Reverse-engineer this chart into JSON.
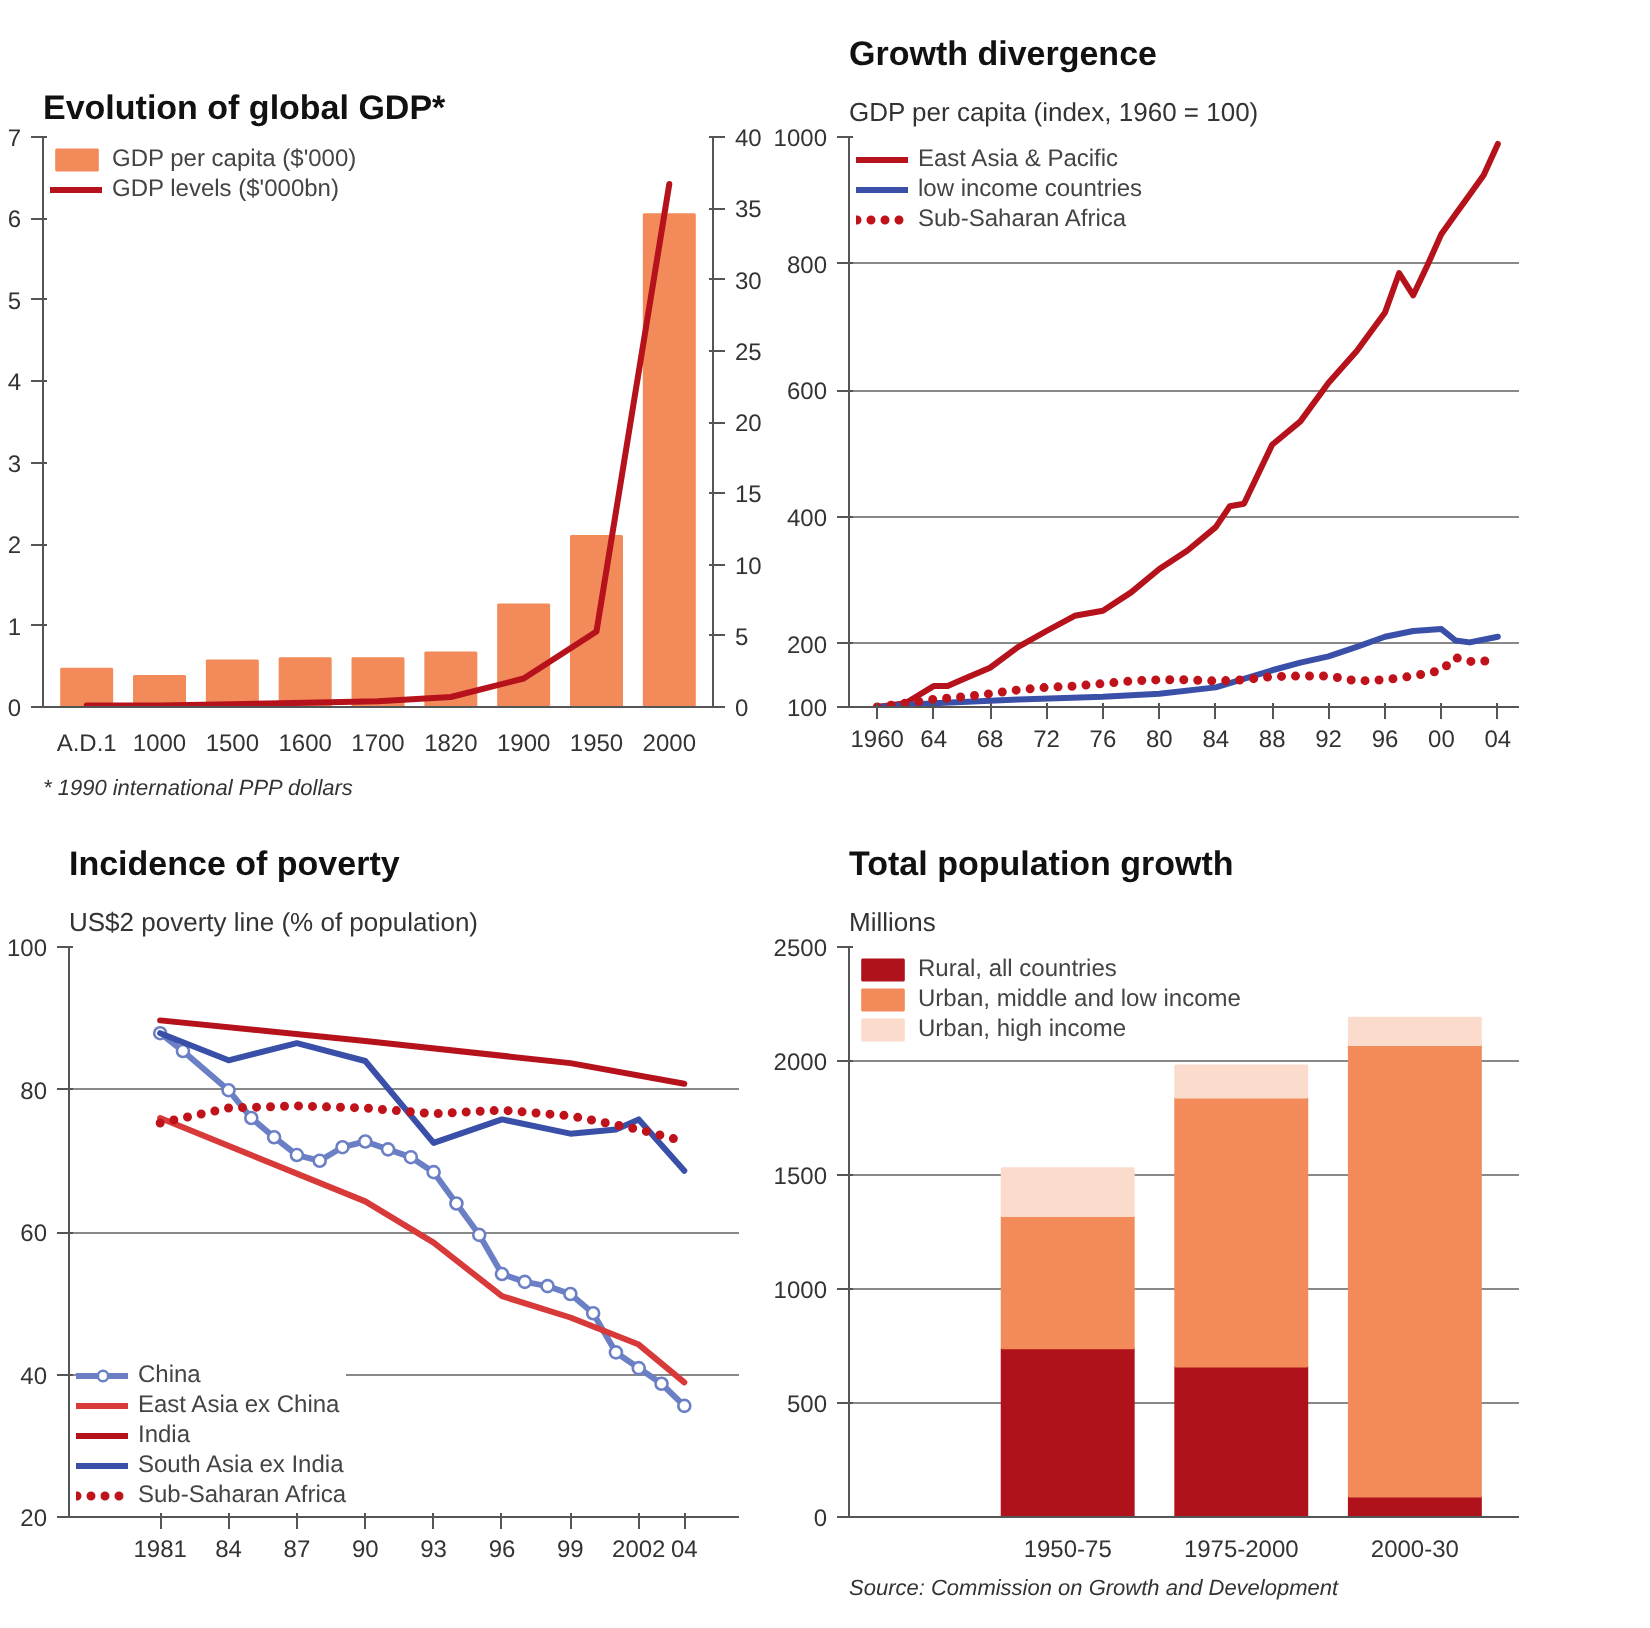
{
  "chart_data": [
    {
      "type": "bar",
      "title": "Evolution of global GDP*",
      "categories": [
        "A.D.1",
        "1000",
        "1500",
        "1600",
        "1700",
        "1820",
        "1900",
        "1950",
        "2000"
      ],
      "series": [
        {
          "name": "GDP per capita ($'000)",
          "color": "#f28a5a",
          "values": [
            0.47,
            0.38,
            0.57,
            0.6,
            0.6,
            0.67,
            1.26,
            2.1,
            6.05
          ]
        },
        {
          "name": "GDP levels ($'000bn)",
          "type": "line",
          "axis": "y2",
          "color": "#b5121b",
          "values": [
            0.1,
            0.1,
            0.2,
            0.3,
            0.4,
            0.7,
            2,
            5.3,
            36.7
          ]
        }
      ],
      "ylim": [
        0,
        7
      ],
      "yticks": [
        0,
        1,
        2,
        3,
        4,
        5,
        6,
        7
      ],
      "y2lim": [
        0,
        40
      ],
      "y2ticks": [
        0,
        5,
        10,
        15,
        20,
        25,
        30,
        35,
        40
      ],
      "legend": "top left",
      "annotations": [
        "* 1990 international PPP dollars"
      ]
    },
    {
      "type": "line",
      "title": "Growth divergence",
      "subtitle": "GDP per capita (index, 1960 = 100)",
      "series": [
        {
          "name": "East Asia & Pacific",
          "color": "#b5121b",
          "x": [
            1960,
            1962,
            1964,
            1965,
            1966,
            1968,
            1970,
            1972,
            1974,
            1976,
            1978,
            1980,
            1982,
            1984,
            1985,
            1986,
            1988,
            1990,
            1992,
            1994,
            1996,
            1997,
            1998,
            1999,
            2000,
            2001,
            2002,
            2003,
            2004
          ],
          "values": [
            100,
            106,
            133,
            133,
            143,
            162,
            195,
            220,
            244,
            252,
            281,
            318,
            347,
            384,
            417,
            421,
            514,
            551,
            612,
            662,
            723,
            785,
            750,
            797,
            847,
            878,
            909,
            940,
            989
          ]
        },
        {
          "name": "low income countries",
          "color": "#3a50a8",
          "x": [
            1960,
            1964,
            1970,
            1976,
            1980,
            1984,
            1988,
            1990,
            1992,
            1994,
            1996,
            1998,
            2000,
            2001,
            2002,
            2004
          ],
          "values": [
            100,
            106,
            112,
            116,
            121,
            131,
            158,
            170,
            180,
            195,
            211,
            220,
            223,
            205,
            202,
            211
          ]
        },
        {
          "name": "Sub-Saharan Africa",
          "color": "#c0121b",
          "line_style": "dotted",
          "x": [
            1960,
            1962,
            1964,
            1966,
            1968,
            1970,
            1972,
            1974,
            1976,
            1978,
            1980,
            1982,
            1984,
            1986,
            1988,
            1990,
            1992,
            1994,
            1996,
            1998,
            2000,
            2001,
            2002,
            2003,
            2004
          ],
          "values": [
            100,
            106,
            112,
            116,
            121,
            127,
            131,
            133,
            137,
            141,
            143,
            143,
            141,
            143,
            148,
            149,
            149,
            141,
            143,
            149,
            158,
            178,
            172,
            172,
            180
          ]
        }
      ],
      "xlim": [
        1958,
        2005.5
      ],
      "xticks": [
        1960,
        {
          "value": 1964,
          "label": "64"
        },
        {
          "value": 1968,
          "label": "68"
        },
        {
          "value": 1972,
          "label": "72"
        },
        {
          "value": 1976,
          "label": "76"
        },
        {
          "value": 1980,
          "label": "80"
        },
        {
          "value": 1984,
          "label": "84"
        },
        {
          "value": 1988,
          "label": "88"
        },
        {
          "value": 1992,
          "label": "92"
        },
        {
          "value": 1996,
          "label": "96"
        },
        {
          "value": 2000,
          "label": "00"
        },
        {
          "value": 2004,
          "label": "04"
        }
      ],
      "ylim": [
        100,
        1000
      ],
      "yticks": [
        100,
        200,
        400,
        600,
        800,
        1000
      ],
      "grid": "y",
      "legend": "top left"
    },
    {
      "type": "line",
      "title": "Incidence of poverty",
      "subtitle": "US$2 poverty line (% of population)",
      "series": [
        {
          "name": "China",
          "color": "#6b7fc4",
          "marker": "circle",
          "x": [
            1981,
            1982,
            1984,
            1985,
            1986,
            1987,
            1988,
            1989,
            1990,
            1991,
            1992,
            1993,
            1994,
            1995,
            1996,
            1997,
            1998,
            1999,
            2000,
            2001,
            2002,
            2003,
            2004
          ],
          "values": [
            87.9,
            85.4,
            79.9,
            76.0,
            73.3,
            70.8,
            70.0,
            71.9,
            72.7,
            71.6,
            70.5,
            68.4,
            64.0,
            59.6,
            54.1,
            53.0,
            52.4,
            51.3,
            48.6,
            43.1,
            40.9,
            38.7,
            35.6
          ]
        },
        {
          "name": "East Asia ex China",
          "color": "#d83a3a",
          "x": [
            1981,
            1990,
            1993,
            1996,
            1999,
            2002,
            2004
          ],
          "values": [
            76.0,
            64.3,
            58.5,
            51.0,
            48.0,
            44.2,
            38.9
          ]
        },
        {
          "name": "India",
          "color": "#b5121b",
          "x": [
            1981,
            1990,
            1999,
            2004
          ],
          "values": [
            89.7,
            86.8,
            83.7,
            80.8
          ]
        },
        {
          "name": "South Asia ex India",
          "color": "#3a50a8",
          "x": [
            1981,
            1984,
            1987,
            1990,
            1993,
            1996,
            1999,
            2001,
            2002,
            2004
          ],
          "values": [
            87.9,
            84.1,
            86.5,
            84.0,
            72.5,
            75.8,
            73.8,
            74.4,
            75.8,
            68.6
          ]
        },
        {
          "name": "Sub-Saharan Africa",
          "color": "#c0121b",
          "line_style": "dotted",
          "x": [
            1981,
            1984,
            1987,
            1990,
            1993,
            1996,
            1999,
            2002,
            2004
          ],
          "values": [
            75.3,
            77.4,
            77.7,
            77.4,
            76.6,
            77.1,
            76.3,
            74.4,
            72.7
          ]
        }
      ],
      "xlim": [
        1977,
        2006.4
      ],
      "xticks": [
        1981,
        {
          "value": 1984,
          "label": "84"
        },
        {
          "value": 1987,
          "label": "87"
        },
        {
          "value": 1990,
          "label": "90"
        },
        {
          "value": 1993,
          "label": "93"
        },
        {
          "value": 1996,
          "label": "96"
        },
        {
          "value": 1999,
          "label": "99"
        },
        2002,
        {
          "value": 2004,
          "label": "04"
        }
      ],
      "ylim": [
        20,
        100
      ],
      "yticks": [
        20,
        40,
        60,
        80,
        100
      ],
      "grid": "y",
      "legend": "bottom left"
    },
    {
      "type": "bar",
      "stacked": true,
      "title": "Total population growth",
      "subtitle": "Millions",
      "categories": [
        "1950-75",
        "1975-2000",
        "2000-30"
      ],
      "series": [
        {
          "name": "Rural, all countries",
          "color": "#b0121b",
          "values": [
            740,
            660,
            90
          ]
        },
        {
          "name": "Urban, middle and low income",
          "color": "#f28a5a",
          "values": [
            580,
            1180,
            1980
          ]
        },
        {
          "name": "Urban, high income",
          "color": "#fbdccc",
          "values": [
            210,
            140,
            120
          ]
        }
      ],
      "ylim": [
        0,
        2500
      ],
      "yticks": [
        0,
        500,
        1000,
        1500,
        2000,
        2500
      ],
      "grid": "y",
      "legend": "top left",
      "annotations": [
        "Source: Commission on Growth and Development"
      ]
    }
  ]
}
